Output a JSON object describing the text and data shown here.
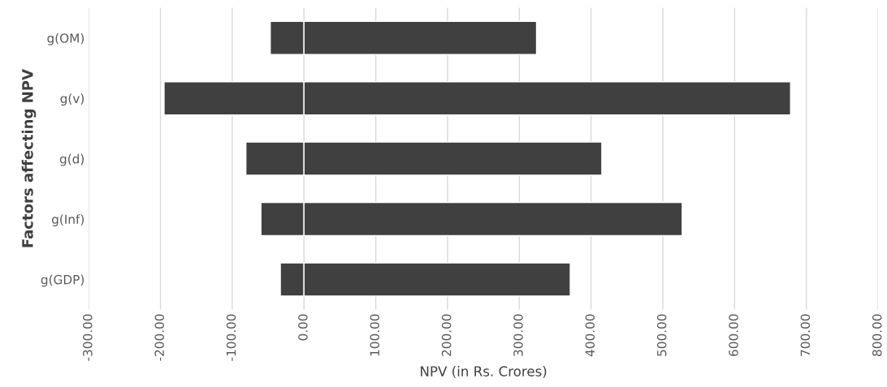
{
  "chart_data": {
    "type": "bar",
    "orientation": "horizontal",
    "stacked": true,
    "xlabel": "NPV (in Rs. Crores)",
    "ylabel": "Factors affecting NPV",
    "categories": [
      "g(OM)",
      "g(v)",
      "g(d)",
      "g(Inf)",
      "g(GDP)"
    ],
    "series": [
      {
        "color": "#404040",
        "values": [
          -47,
          -195,
          -81,
          -60,
          -33
        ]
      },
      {
        "color": "#404040",
        "values": [
          324,
          678,
          415,
          527,
          371
        ]
      }
    ],
    "xlim": [
      -300,
      800
    ],
    "xticks": [
      {
        "value": -300,
        "label": "-300.00"
      },
      {
        "value": -200,
        "label": "-200.00"
      },
      {
        "value": -100,
        "label": "-100.00"
      },
      {
        "value": 0,
        "label": "0.00"
      },
      {
        "value": 100,
        "label": "100.00"
      },
      {
        "value": 200,
        "label": "200.00"
      },
      {
        "value": 300,
        "label": "300.00"
      },
      {
        "value": 400,
        "label": "400.00"
      },
      {
        "value": 500,
        "label": "500.00"
      },
      {
        "value": 600,
        "label": "600.00"
      },
      {
        "value": 700,
        "label": "700.00"
      },
      {
        "value": 800,
        "label": "800.00"
      }
    ],
    "grid": "x",
    "legend": false
  }
}
